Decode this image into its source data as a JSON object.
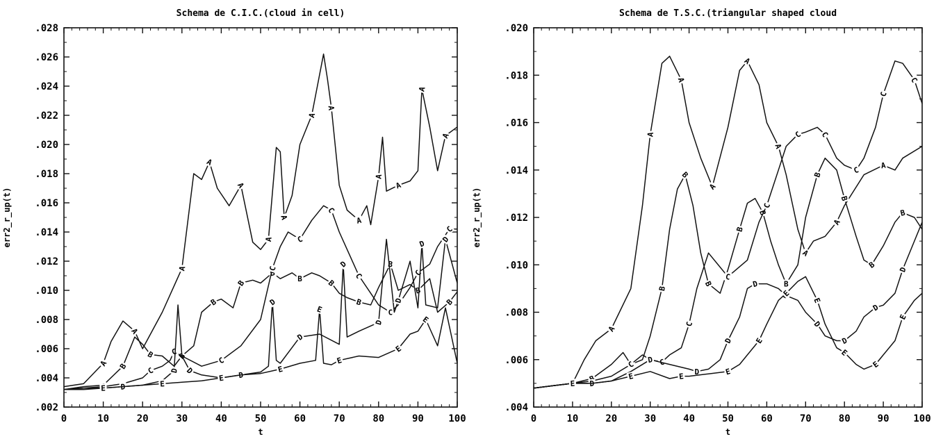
{
  "chart_data": [
    {
      "type": "line",
      "title": "Schema de C.I.C.(cloud in cell)",
      "xlabel": "t",
      "ylabel": "err2_r_up(t)",
      "xlim": [
        0,
        100
      ],
      "ylim": [
        0.002,
        0.028
      ],
      "xticks": [
        "0",
        "10",
        "20",
        "30",
        "40",
        "50",
        "60",
        "70",
        "80",
        "90",
        "100"
      ],
      "yticks": [
        ".002",
        ".004",
        ".006",
        ".008",
        ".010",
        ".012",
        ".014",
        ".016",
        ".018",
        ".020",
        ".022",
        ".024",
        ".026",
        ".028"
      ],
      "grid": false,
      "legend": "curve letters on lines",
      "series": [
        {
          "name": "A",
          "x": [
            0,
            5,
            10,
            12,
            15,
            18,
            20,
            25,
            30,
            33,
            35,
            37,
            39,
            42,
            45,
            48,
            50,
            52,
            54,
            55,
            56,
            58,
            60,
            63,
            66,
            67,
            68,
            70,
            72,
            75,
            77,
            78,
            80,
            81,
            82,
            85,
            88,
            90,
            91,
            93,
            95,
            97,
            100
          ],
          "y": [
            0.0034,
            0.0036,
            0.005,
            0.0065,
            0.0079,
            0.0072,
            0.006,
            0.0085,
            0.0115,
            0.018,
            0.0176,
            0.0188,
            0.017,
            0.0158,
            0.0172,
            0.0133,
            0.0128,
            0.0135,
            0.0198,
            0.0195,
            0.015,
            0.0165,
            0.02,
            0.022,
            0.0262,
            0.0245,
            0.0225,
            0.0172,
            0.0155,
            0.0148,
            0.0158,
            0.0145,
            0.0178,
            0.0205,
            0.0168,
            0.0172,
            0.0175,
            0.0182,
            0.0238,
            0.0212,
            0.0182,
            0.0206,
            0.0212
          ]
        },
        {
          "name": "B",
          "x": [
            0,
            5,
            10,
            15,
            18,
            20,
            22,
            25,
            28,
            30,
            33,
            35,
            38,
            40,
            43,
            45,
            48,
            50,
            53,
            55,
            58,
            60,
            63,
            65,
            68,
            70,
            72,
            75,
            78,
            80,
            83,
            85,
            88,
            90,
            93,
            95,
            98,
            100
          ],
          "y": [
            0.0032,
            0.0034,
            0.0035,
            0.0048,
            0.0068,
            0.0063,
            0.0056,
            0.0055,
            0.0048,
            0.0055,
            0.0062,
            0.0085,
            0.0092,
            0.0094,
            0.0088,
            0.0105,
            0.0107,
            0.0105,
            0.0112,
            0.0108,
            0.0112,
            0.0108,
            0.0112,
            0.011,
            0.0105,
            0.0098,
            0.0095,
            0.0092,
            0.009,
            0.0102,
            0.0118,
            0.01,
            0.0104,
            0.01,
            0.0108,
            0.0085,
            0.0092,
            0.0099
          ]
        },
        {
          "name": "C",
          "x": [
            0,
            5,
            10,
            15,
            20,
            22,
            25,
            27,
            28,
            30,
            35,
            40,
            45,
            50,
            53,
            55,
            57,
            60,
            63,
            66,
            68,
            70,
            73,
            75,
            78,
            80,
            83,
            85,
            88,
            90,
            93,
            95,
            98,
            100
          ],
          "y": [
            0.0032,
            0.0033,
            0.0034,
            0.0036,
            0.004,
            0.0045,
            0.0048,
            0.0052,
            0.0058,
            0.0055,
            0.0048,
            0.0052,
            0.0062,
            0.008,
            0.0115,
            0.013,
            0.014,
            0.0135,
            0.0148,
            0.0158,
            0.0155,
            0.014,
            0.0122,
            0.011,
            0.0098,
            0.009,
            0.0085,
            0.009,
            0.0102,
            0.0112,
            0.0118,
            0.013,
            0.0142,
            0.0142
          ]
        },
        {
          "name": "D",
          "x": [
            0,
            5,
            10,
            15,
            20,
            25,
            28,
            29,
            30,
            32,
            35,
            40,
            45,
            50,
            52,
            53,
            54,
            55,
            60,
            65,
            70,
            71,
            72,
            75,
            80,
            82,
            84,
            85,
            88,
            90,
            91,
            92,
            95,
            97,
            100
          ],
          "y": [
            0.0032,
            0.0032,
            0.0033,
            0.0034,
            0.0035,
            0.0038,
            0.0045,
            0.009,
            0.0055,
            0.0045,
            0.0042,
            0.004,
            0.0042,
            0.0044,
            0.0048,
            0.0092,
            0.0052,
            0.005,
            0.0068,
            0.007,
            0.0063,
            0.0118,
            0.0068,
            0.0072,
            0.0078,
            0.0135,
            0.0085,
            0.0093,
            0.012,
            0.0088,
            0.0132,
            0.009,
            0.0088,
            0.0135,
            0.0105
          ]
        },
        {
          "name": "E",
          "x": [
            0,
            5,
            10,
            15,
            20,
            25,
            30,
            35,
            40,
            45,
            50,
            55,
            60,
            64,
            65,
            66,
            68,
            70,
            75,
            80,
            85,
            88,
            90,
            92,
            95,
            97,
            100
          ],
          "y": [
            0.0032,
            0.0033,
            0.0033,
            0.0034,
            0.0035,
            0.0036,
            0.0037,
            0.0038,
            0.004,
            0.0042,
            0.0043,
            0.0046,
            0.005,
            0.0052,
            0.0087,
            0.005,
            0.0049,
            0.0052,
            0.0055,
            0.0054,
            0.006,
            0.007,
            0.0072,
            0.008,
            0.0062,
            0.0088,
            0.005
          ]
        }
      ]
    },
    {
      "type": "line",
      "title": "Schema de T.S.C.(triangular shaped cloud",
      "xlabel": "t",
      "ylabel": "err2_r_up(t)",
      "xlim": [
        0,
        100
      ],
      "ylim": [
        0.004,
        0.02
      ],
      "xticks": [
        "0",
        "10",
        "20",
        "30",
        "40",
        "50",
        "60",
        "70",
        "80",
        "90",
        "100"
      ],
      "yticks": [
        ".004",
        ".006",
        ".008",
        ".010",
        ".012",
        ".014",
        ".016",
        ".018",
        ".020"
      ],
      "grid": false,
      "legend": "curve letters on lines",
      "series": [
        {
          "name": "A",
          "x": [
            0,
            5,
            10,
            13,
            16,
            20,
            25,
            28,
            30,
            33,
            35,
            38,
            40,
            43,
            46,
            50,
            53,
            55,
            58,
            60,
            63,
            65,
            68,
            70,
            72,
            75,
            78,
            80,
            85,
            90,
            93,
            95,
            100
          ],
          "y": [
            0.0048,
            0.0049,
            0.005,
            0.006,
            0.0068,
            0.0073,
            0.009,
            0.0125,
            0.0155,
            0.0185,
            0.0188,
            0.0178,
            0.016,
            0.0145,
            0.0133,
            0.0158,
            0.0182,
            0.0186,
            0.0176,
            0.016,
            0.015,
            0.0138,
            0.0115,
            0.0105,
            0.011,
            0.0112,
            0.0118,
            0.0125,
            0.0138,
            0.0142,
            0.014,
            0.0145,
            0.015
          ]
        },
        {
          "name": "B",
          "x": [
            0,
            5,
            10,
            15,
            20,
            23,
            25,
            28,
            30,
            33,
            35,
            37,
            39,
            41,
            43,
            45,
            48,
            50,
            53,
            55,
            57,
            59,
            61,
            63,
            65,
            68,
            70,
            73,
            75,
            78,
            80,
            83,
            85,
            87,
            90,
            93,
            95,
            98,
            100
          ],
          "y": [
            0.0048,
            0.0049,
            0.005,
            0.0052,
            0.0058,
            0.0063,
            0.0058,
            0.006,
            0.007,
            0.009,
            0.0115,
            0.0132,
            0.0138,
            0.0125,
            0.0105,
            0.0092,
            0.0088,
            0.0098,
            0.0115,
            0.0126,
            0.0128,
            0.0122,
            0.011,
            0.01,
            0.0092,
            0.01,
            0.012,
            0.0138,
            0.0145,
            0.014,
            0.0128,
            0.0112,
            0.0102,
            0.01,
            0.0108,
            0.0118,
            0.0122,
            0.012,
            0.0115
          ]
        },
        {
          "name": "C",
          "x": [
            0,
            5,
            10,
            15,
            20,
            25,
            28,
            30,
            33,
            35,
            38,
            40,
            42,
            45,
            50,
            55,
            58,
            60,
            63,
            65,
            68,
            70,
            73,
            75,
            78,
            80,
            83,
            85,
            88,
            90,
            93,
            95,
            98,
            100
          ],
          "y": [
            0.0048,
            0.0049,
            0.005,
            0.0051,
            0.0053,
            0.0058,
            0.0062,
            0.006,
            0.0059,
            0.0062,
            0.0065,
            0.0075,
            0.009,
            0.0105,
            0.0095,
            0.0102,
            0.0118,
            0.0125,
            0.014,
            0.015,
            0.0155,
            0.0156,
            0.0158,
            0.0155,
            0.0145,
            0.0142,
            0.014,
            0.0145,
            0.0158,
            0.0172,
            0.0186,
            0.0185,
            0.0178,
            0.0168
          ]
        },
        {
          "name": "D",
          "x": [
            0,
            5,
            10,
            15,
            20,
            25,
            30,
            35,
            40,
            42,
            45,
            48,
            50,
            53,
            55,
            57,
            60,
            63,
            65,
            68,
            70,
            73,
            75,
            78,
            80,
            83,
            85,
            88,
            90,
            93,
            95,
            98,
            100
          ],
          "y": [
            0.0048,
            0.0049,
            0.005,
            0.005,
            0.0051,
            0.0055,
            0.006,
            0.0058,
            0.0056,
            0.0055,
            0.0056,
            0.006,
            0.0068,
            0.0078,
            0.009,
            0.0092,
            0.0092,
            0.009,
            0.0087,
            0.0085,
            0.008,
            0.0075,
            0.007,
            0.0068,
            0.0068,
            0.0072,
            0.0078,
            0.0082,
            0.0083,
            0.0088,
            0.0098,
            0.011,
            0.0118
          ]
        },
        {
          "name": "E",
          "x": [
            0,
            5,
            10,
            15,
            20,
            25,
            30,
            35,
            38,
            40,
            45,
            50,
            53,
            55,
            58,
            60,
            63,
            65,
            68,
            70,
            73,
            75,
            78,
            80,
            83,
            85,
            88,
            90,
            93,
            95,
            98,
            100
          ],
          "y": [
            0.0048,
            0.0049,
            0.005,
            0.005,
            0.0051,
            0.0053,
            0.0055,
            0.0052,
            0.0053,
            0.0053,
            0.0054,
            0.0055,
            0.0058,
            0.0062,
            0.0068,
            0.0075,
            0.0085,
            0.0088,
            0.0093,
            0.0095,
            0.0085,
            0.0075,
            0.0065,
            0.0063,
            0.0058,
            0.0056,
            0.0058,
            0.0062,
            0.0068,
            0.0078,
            0.0085,
            0.0088
          ]
        }
      ]
    }
  ]
}
